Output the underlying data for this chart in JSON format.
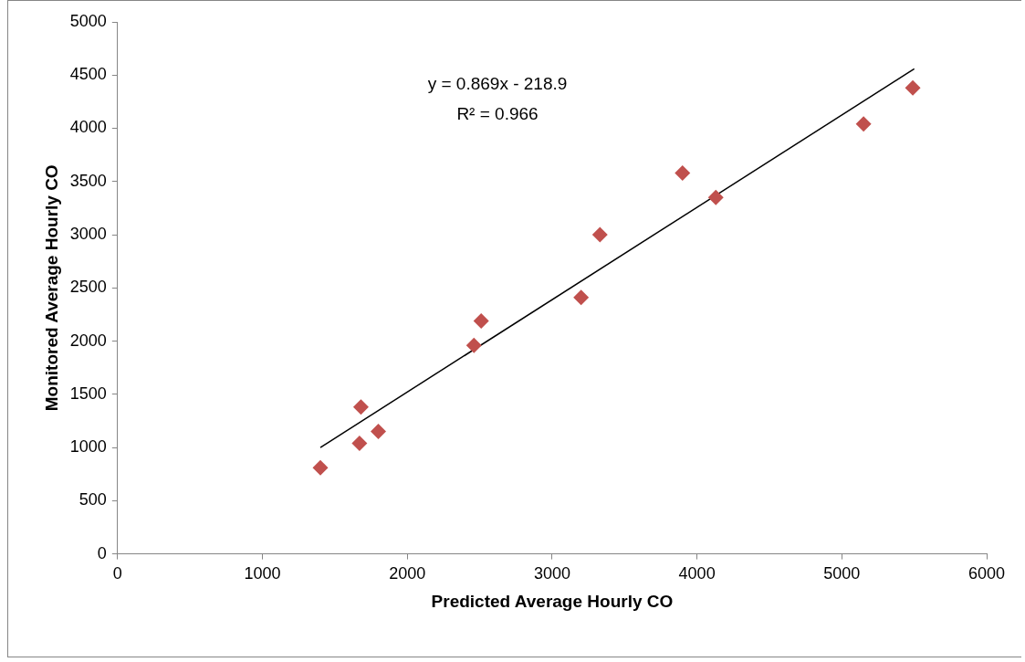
{
  "chart_data": {
    "type": "scatter",
    "xlabel": "Predicted Average Hourly CO",
    "ylabel": "Monitored Average Hourly CO",
    "xlim": [
      0,
      6000
    ],
    "xticks": [
      0,
      1000,
      2000,
      3000,
      4000,
      5000,
      6000
    ],
    "ylim": [
      0,
      5000
    ],
    "yticks": [
      0,
      500,
      1000,
      1500,
      2000,
      2500,
      3000,
      3500,
      4000,
      4500,
      5000
    ],
    "grid": false,
    "legend": false,
    "marker": "diamond",
    "annotations": [
      "y = 0.869x - 218.9",
      "R² = 0.966"
    ],
    "series": [
      {
        "type": "scatter",
        "color": "#c0504d",
        "x": [
          1400,
          1670,
          1680,
          1800,
          2460,
          2510,
          3200,
          3330,
          3900,
          4130,
          5150,
          5490
        ],
        "values": [
          810,
          1040,
          1380,
          1150,
          1960,
          2190,
          2410,
          3000,
          3580,
          3350,
          4040,
          4380
        ]
      },
      {
        "type": "line",
        "color": "#000000",
        "marker": "none",
        "line_style": "solid",
        "x": [
          1400,
          5500
        ],
        "values": [
          1000,
          4560
        ]
      }
    ]
  }
}
